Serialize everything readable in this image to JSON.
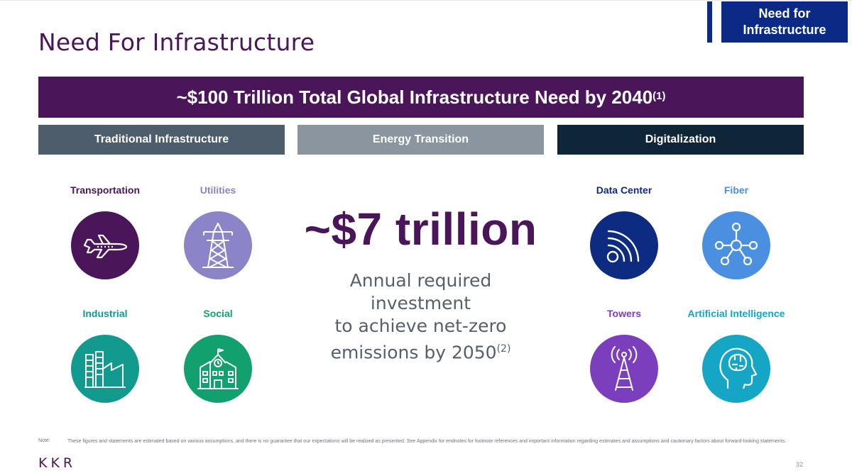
{
  "tag": {
    "line1": "Need for",
    "line2": "Infrastructure"
  },
  "title": "Need For Infrastructure",
  "banner": {
    "text": "~$100 Trillion Total Global Infrastructure Need by 2040",
    "sup": "(1)"
  },
  "categories": [
    "Traditional Infrastructure",
    "Energy Transition",
    "Digitalization"
  ],
  "left_items": [
    {
      "label": "Transportation",
      "icon": "airplane-icon",
      "label_color": "#4b1659",
      "circle_color": "#4b1659"
    },
    {
      "label": "Utilities",
      "icon": "power-tower-icon",
      "label_color": "#8c84c8",
      "circle_color": "#8c84c8"
    },
    {
      "label": "Industrial",
      "icon": "factory-icon",
      "label_color": "#139a8e",
      "circle_color": "#139a8e"
    },
    {
      "label": "Social",
      "icon": "school-icon",
      "label_color": "#12a06e",
      "circle_color": "#12a06e"
    }
  ],
  "right_items": [
    {
      "label": "Data Center",
      "icon": "wifi-signal-icon",
      "label_color": "#0d2b80",
      "circle_color": "#0d2b80"
    },
    {
      "label": "Fiber",
      "icon": "network-icon",
      "label_color": "#4a8fe0",
      "circle_color": "#4a8fe0"
    },
    {
      "label": "Towers",
      "icon": "cell-tower-icon",
      "label_color": "#7b3fbe",
      "circle_color": "#7b3fbe"
    },
    {
      "label": "Artificial Intelligence",
      "icon": "ai-head-icon",
      "label_color": "#15a6c6",
      "circle_color": "#15a6c6"
    }
  ],
  "energy": {
    "big": "~$7 trillion",
    "line1": "Annual required investment",
    "line2": "to achieve net-zero",
    "line3": "emissions by 2050",
    "sup": "(2)"
  },
  "note": {
    "label": "Note:",
    "text": "These figures and statements are estimated based on various assumptions, and there is no guarantee that our expectations will be realized as presented. See Appendix for endnotes for footnote references and important information regarding estimates and assumptions and cautionary factors about forward-looking statements."
  },
  "logo": "KKR",
  "page_number": "32"
}
